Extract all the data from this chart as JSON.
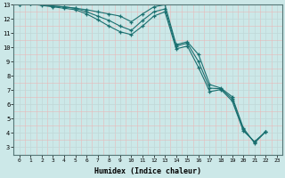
{
  "xlabel": "Humidex (Indice chaleur)",
  "bg_color": "#cce8e8",
  "grid_color": "#b0cccc",
  "line_color": "#1a7070",
  "xlim": [
    -0.5,
    23.5
  ],
  "ylim": [
    3,
    13
  ],
  "xticks": [
    0,
    1,
    2,
    3,
    4,
    5,
    6,
    7,
    8,
    9,
    10,
    11,
    12,
    13,
    14,
    15,
    16,
    17,
    18,
    19,
    20,
    21,
    22,
    23
  ],
  "yticks": [
    3,
    4,
    5,
    6,
    7,
    8,
    9,
    10,
    11,
    12,
    13
  ],
  "series": [
    [
      13.0,
      13.1,
      13.0,
      12.9,
      12.85,
      12.75,
      12.65,
      12.5,
      12.35,
      12.2,
      11.8,
      12.35,
      12.85,
      13.0,
      10.2,
      10.4,
      9.5,
      7.4,
      7.15,
      6.55,
      4.35,
      3.3,
      4.1
    ],
    [
      13.0,
      13.1,
      13.0,
      12.9,
      12.85,
      12.75,
      12.5,
      12.2,
      11.9,
      11.5,
      11.2,
      11.9,
      12.5,
      12.7,
      10.1,
      10.3,
      9.0,
      7.15,
      7.1,
      6.4,
      4.25,
      3.35,
      4.1
    ],
    [
      13.0,
      13.05,
      12.95,
      12.85,
      12.75,
      12.65,
      12.35,
      11.95,
      11.5,
      11.1,
      10.9,
      11.5,
      12.2,
      12.5,
      9.9,
      10.1,
      8.6,
      6.9,
      7.05,
      6.25,
      4.15,
      3.4,
      4.1
    ]
  ]
}
